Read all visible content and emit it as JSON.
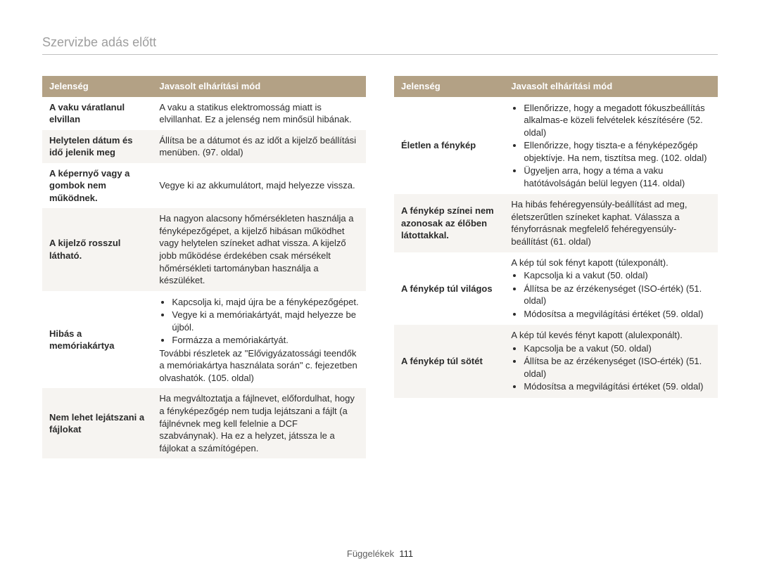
{
  "header": {
    "title": "Szervizbe adás előtt"
  },
  "colors": {
    "header_bg": "#b3a185",
    "header_fg": "#ffffff",
    "stripe_bg": "#f6f4f1",
    "title_fg": "#9e9e9e",
    "rule": "#c0c0c0"
  },
  "table_headers": {
    "symptom": "Jelenség",
    "remedy": "Javasolt elhárítási mód"
  },
  "left_table": [
    {
      "stripe": false,
      "symptom": "A vaku váratlanul elvillan",
      "remedy": {
        "type": "text",
        "text": "A vaku a statikus elektromosság miatt is elvillanhat. Ez a jelenség nem minősül hibának."
      }
    },
    {
      "stripe": true,
      "symptom": "Helytelen dátum és idő jelenik meg",
      "remedy": {
        "type": "text",
        "text": "Állítsa be a dátumot és az időt a kijelző beállítási menüben. (97. oldal)"
      }
    },
    {
      "stripe": false,
      "symptom": "A képernyő vagy a gombok nem működnek.",
      "remedy": {
        "type": "text",
        "text": "Vegye ki az akkumulátort, majd helyezze vissza."
      }
    },
    {
      "stripe": true,
      "symptom": "A kijelző rosszul látható.",
      "remedy": {
        "type": "text",
        "text": "Ha nagyon alacsony hőmérsékleten használja a fényképezőgépet, a kijelző hibásan működhet vagy helytelen színeket adhat vissza. A kijelző jobb működése érdekében csak mérsékelt hőmérsékleti tartományban használja a készüléket."
      }
    },
    {
      "stripe": false,
      "symptom": "Hibás a memóriakártya",
      "remedy": {
        "type": "mixed",
        "list": [
          "Kapcsolja ki, majd újra be a fényképezőgépet.",
          "Vegye ki a memóriakártyát, majd helyezze be újból.",
          "Formázza a memóriakártyát."
        ],
        "after": "További részletek az \"Elővigyázatossági teendők a memóriakártya használata során\" c. fejezetben olvashatók. (105. oldal)"
      }
    },
    {
      "stripe": true,
      "symptom": "Nem lehet lejátszani a fájlokat",
      "remedy": {
        "type": "text",
        "text": "Ha megváltoztatja a fájlnevet, előfordulhat, hogy a fényképezőgép nem tudja lejátszani a fájlt (a fájlnévnek meg kell felelnie a DCF szabványnak). Ha ez a helyzet, játssza le a fájlokat a számítógépen."
      }
    }
  ],
  "right_table": [
    {
      "stripe": false,
      "symptom": "Életlen a fénykép",
      "remedy": {
        "type": "list",
        "list": [
          "Ellenőrizze, hogy a megadott fókuszbeállítás alkalmas-e közeli felvételek készítésére (52. oldal)",
          "Ellenőrizze, hogy tiszta-e a fényképezőgép objektívje. Ha nem, tisztítsa meg. (102. oldal)",
          "Ügyeljen arra, hogy a téma a vaku hatótávolságán belül legyen (114. oldal)"
        ]
      }
    },
    {
      "stripe": true,
      "symptom": "A fénykép színei nem azonosak az élőben látottakkal.",
      "remedy": {
        "type": "text",
        "text": "Ha hibás fehéregyensúly-beállítást ad meg, életszerűtlen színeket kaphat. Válassza a fényforrásnak megfelelő fehéregyensúly-beállítást (61. oldal)"
      }
    },
    {
      "stripe": false,
      "symptom": "A fénykép túl világos",
      "remedy": {
        "type": "mixed",
        "before": "A kép túl sok fényt kapott (túlexponált).",
        "list": [
          "Kapcsolja ki a vakut (50. oldal)",
          "Állítsa be az érzékenységet (ISO-érték) (51. oldal)",
          "Módosítsa a megvilágítási értéket (59. oldal)"
        ]
      }
    },
    {
      "stripe": true,
      "symptom": "A fénykép túl sötét",
      "remedy": {
        "type": "mixed",
        "before": "A kép túl kevés fényt kapott (alulexponált).",
        "list": [
          "Kapcsolja be a vakut (50. oldal)",
          "Állítsa be az érzékenységet (ISO-érték) (51. oldal)",
          "Módosítsa a megvilágítási értéket (59. oldal)"
        ]
      }
    }
  ],
  "footer": {
    "label": "Függelékek",
    "page": "111"
  }
}
